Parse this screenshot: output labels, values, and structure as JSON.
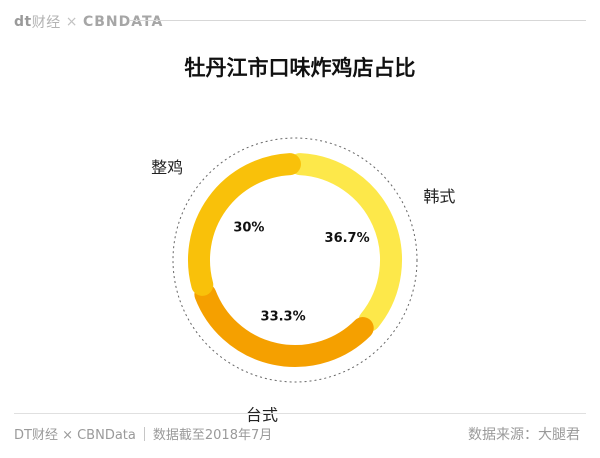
{
  "header": {
    "brand_dt": "dt",
    "brand_cn": "财经",
    "brand_sep": "×",
    "brand_cbn": "CBNDATA"
  },
  "chart_data": {
    "type": "pie",
    "title": "牡丹江市口味炸鸡店占比",
    "categories": [
      "韩式",
      "台式",
      "整鸡"
    ],
    "values": [
      36.7,
      33.3,
      30
    ],
    "value_labels": [
      "36.7%",
      "33.3%",
      "30%"
    ],
    "colors": [
      "#FDE84A",
      "#F5A000",
      "#F9C10A"
    ],
    "style": "donut"
  },
  "footer": {
    "source": "DT财经 × CBNData",
    "note": "数据截至2018年7月",
    "watermark": "数据来源：大腿君"
  }
}
